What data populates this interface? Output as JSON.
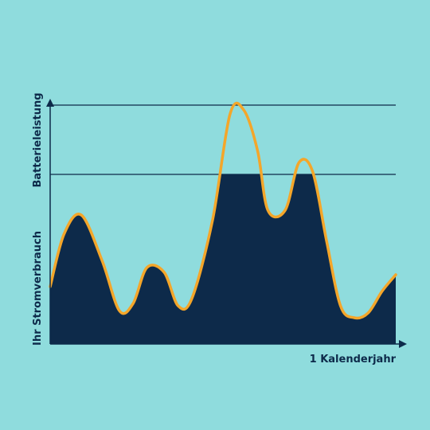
{
  "chart_data": {
    "type": "area",
    "title": "",
    "xlabel": "1 Kalenderjahr",
    "ylabel_top": "Batterieleistung",
    "ylabel_bottom": "Ihr Stromverbrauch",
    "series": [
      {
        "values_x": [
          0,
          0.04,
          0.09,
          0.15,
          0.2,
          0.24,
          0.28,
          0.33,
          0.37,
          0.41,
          0.47,
          0.52,
          0.56,
          0.6,
          0.63,
          0.68,
          0.72,
          0.76,
          0.8,
          0.84,
          0.88,
          0.92,
          0.96,
          1.0
        ],
        "values_y": [
          0.24,
          0.46,
          0.54,
          0.35,
          0.14,
          0.17,
          0.32,
          0.3,
          0.16,
          0.19,
          0.52,
          0.96,
          0.98,
          0.81,
          0.56,
          0.56,
          0.76,
          0.72,
          0.43,
          0.16,
          0.11,
          0.13,
          0.22,
          0.29
        ]
      }
    ],
    "caps": [
      0.71,
      1.0
    ],
    "colors": {
      "background": "#8fdcdd",
      "fill": "#0d2a4a",
      "curve": "#f4a62a",
      "axis": "#0d2a4a"
    },
    "grid": false
  }
}
